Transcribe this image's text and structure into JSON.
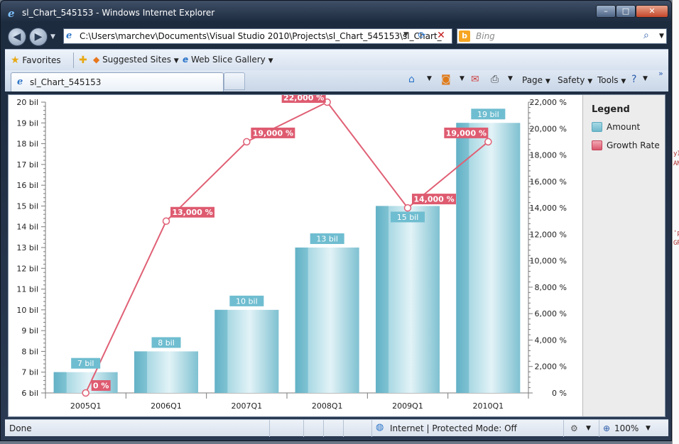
{
  "window": {
    "title": "sl_Chart_545153 - Windows Internet Explorer",
    "buttons": {
      "minimize": "–",
      "maximize": "□",
      "close": "✕"
    }
  },
  "address_bar": {
    "url": "C:\\Users\\marchev\\Documents\\Visual Studio 2010\\Projects\\sl_Chart_545153\\sl_Chart_",
    "search_placeholder": "Bing"
  },
  "favorites_bar": {
    "favorites": "Favorites",
    "suggested_sites": "Suggested Sites",
    "web_slice_gallery": "Web Slice Gallery"
  },
  "tabs": [
    {
      "label": "sl_Chart_545153"
    }
  ],
  "command_bar": {
    "page": "Page",
    "safety": "Safety",
    "tools": "Tools"
  },
  "status_bar": {
    "status": "Done",
    "zone": "Internet | Protected Mode: Off",
    "zoom": "100%"
  },
  "legend": {
    "title": "Legend",
    "items": [
      {
        "label": "Amount",
        "color": "#7cc3d4"
      },
      {
        "label": "Growth Rate",
        "color": "#e06075"
      }
    ]
  },
  "chart_data": {
    "type": "bar",
    "categories": [
      "2005Q1",
      "2006Q1",
      "2007Q1",
      "2008Q1",
      "2009Q1",
      "2010Q1"
    ],
    "series": [
      {
        "name": "Amount",
        "type": "bar",
        "axis": "left",
        "values": [
          7,
          8,
          10,
          13,
          15,
          19
        ],
        "labels": [
          "7 bil",
          "8 bil",
          "10 bil",
          "13 bil",
          "15 bil",
          "19 bil"
        ],
        "color": "#7cc3d4"
      },
      {
        "name": "Growth Rate",
        "type": "line",
        "axis": "right",
        "values": [
          0,
          13000,
          19000,
          22000,
          14000,
          19000
        ],
        "labels": [
          "0 %",
          "13,000 %",
          "19,000 %",
          "22,000 %",
          "14,000 %",
          "19,000 %"
        ],
        "color": "#e06075"
      }
    ],
    "y_left": {
      "min": 6,
      "max": 20,
      "ticks": [
        "6 bil",
        "7 bil",
        "8 bil",
        "9 bil",
        "10 bil",
        "11 bil",
        "12 bil",
        "13 bil",
        "14 bil",
        "15 bil",
        "16 bil",
        "17 bil",
        "18 bil",
        "19 bil",
        "20 bil"
      ]
    },
    "y_right": {
      "min": 0,
      "max": 22000,
      "ticks": [
        "0 %",
        "2,000 %",
        "4,000 %",
        "6,000 %",
        "8,000 %",
        "10,000 %",
        "12,000 %",
        "14,000 %",
        "16,000 %",
        "18,000 %",
        "20,000 %",
        "22,000 %"
      ]
    },
    "grid": false,
    "legend": "right"
  }
}
